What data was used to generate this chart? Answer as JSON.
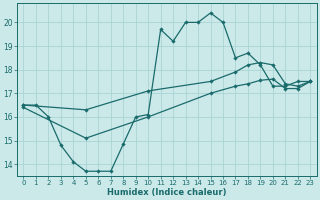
{
  "xlabel": "Humidex (Indice chaleur)",
  "bg_color": "#cce9ea",
  "grid_color": "#aad4d5",
  "line_color": "#1a6b6b",
  "xlim": [
    -0.5,
    23.5
  ],
  "ylim": [
    13.5,
    20.8
  ],
  "xticks": [
    0,
    1,
    2,
    3,
    4,
    5,
    6,
    7,
    8,
    9,
    10,
    11,
    12,
    13,
    14,
    15,
    16,
    17,
    18,
    19,
    20,
    21,
    22,
    23
  ],
  "yticks": [
    14,
    15,
    16,
    17,
    18,
    19,
    20
  ],
  "line1_x": [
    0,
    1,
    2,
    3,
    4,
    5,
    6,
    7,
    8,
    9,
    10,
    11,
    12,
    13,
    14,
    15,
    16,
    17,
    18,
    19,
    20,
    21,
    22,
    23
  ],
  "line1_y": [
    16.5,
    16.5,
    16.0,
    14.8,
    14.1,
    13.7,
    13.7,
    13.7,
    14.85,
    16.0,
    16.1,
    19.7,
    19.2,
    20.0,
    20.0,
    20.4,
    20.0,
    18.5,
    18.7,
    18.2,
    17.3,
    17.3,
    17.5,
    17.5
  ],
  "line1_markers": [
    0,
    1,
    2,
    3,
    4,
    5,
    6,
    7,
    8,
    9,
    10,
    11,
    12,
    13,
    14,
    15,
    16,
    17,
    18,
    19,
    20,
    21,
    22,
    23
  ],
  "line2_x": [
    0,
    5,
    10,
    15,
    17,
    18,
    19,
    20,
    21,
    22,
    23
  ],
  "line2_y": [
    16.5,
    16.3,
    17.1,
    17.5,
    17.9,
    18.2,
    18.3,
    18.2,
    17.4,
    17.3,
    17.5
  ],
  "line3_x": [
    0,
    5,
    10,
    15,
    17,
    18,
    19,
    20,
    21,
    22,
    23
  ],
  "line3_y": [
    16.4,
    15.1,
    16.0,
    17.0,
    17.3,
    17.4,
    17.55,
    17.6,
    17.2,
    17.2,
    17.5
  ]
}
